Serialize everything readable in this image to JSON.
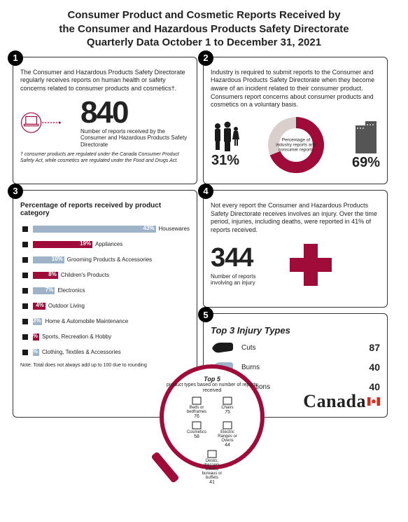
{
  "title_lines": [
    "Consumer Product and Cosmetic Reports Received by",
    "the Consumer and Hazardous Products Safety Directorate",
    "Quarterly Data October 1 to December 31, 2021"
  ],
  "colors": {
    "accent": "#a00c3a",
    "bar_alt": "#9fb3c8",
    "black": "#1a1a1a",
    "grey_icon": "#555555"
  },
  "panel1": {
    "text": "The Consumer and Hazardous Products Safety Directorate regularly receives reports on human health or safety concerns related to consumer products and cosmetics†.",
    "big_number": "840",
    "caption": "Number of reports received by the Consumer and Hazardous Products Safety Directorate",
    "footnote": "† consumer products are regulated under the Canada Consumer Product Safety Act, while cosmetics are regulated under the Food and Drugs Act."
  },
  "panel2": {
    "text": "Industry is required to submit reports to the Consumer and Hazardous Products Safety Directorate when they become aware of an incident related to their consumer product. Consumers report concerns about consumer products and cosmetics on a voluntary basis.",
    "left_pct": "31%",
    "right_pct": "69%",
    "donut_center": "Percentage of industry reports and consumer reports",
    "donut_values": [
      31,
      69
    ]
  },
  "panel3": {
    "title": "Percentage of reports received by product category",
    "type": "bar",
    "max_pct": 50,
    "rows": [
      {
        "icon": "lamp",
        "pct": 43,
        "label": "Housewares",
        "color": "#9fb3c8"
      },
      {
        "icon": "appliance",
        "pct": 19,
        "label": "Appliances",
        "color": "#a00c3a"
      },
      {
        "icon": "grooming",
        "pct": 10,
        "label": "Grooming Products & Accessories",
        "color": "#9fb3c8"
      },
      {
        "icon": "child",
        "pct": 8,
        "label": "Children's Products",
        "color": "#a00c3a"
      },
      {
        "icon": "electronics",
        "pct": 7,
        "label": "Electronics",
        "color": "#9fb3c8"
      },
      {
        "icon": "outdoor",
        "pct": 4,
        "label": "Outdoor Living",
        "color": "#a00c3a"
      },
      {
        "icon": "home-auto",
        "pct": 3,
        "label": "Home & Automobile Maintenance",
        "color": "#9fb3c8"
      },
      {
        "icon": "sports",
        "pct": 2,
        "label": "Sports, Recreation & Hobby",
        "color": "#a00c3a"
      },
      {
        "icon": "clothing",
        "pct": 2,
        "label": "Clothing, Textiles & Accessories",
        "color": "#9fb3c8"
      }
    ],
    "note": "Note: Total does not always add up to 100 due to rounding"
  },
  "panel4": {
    "text": "Not every report the Consumer and Hazardous Products Safety Directorate receives involves an injury. Over the time period, injuries, including deaths, were reported in 41% of reports received.",
    "big_number": "344",
    "caption": "Number of reports involving an injury"
  },
  "panel5": {
    "title": "Top 3 Injury Types",
    "rows": [
      {
        "label": "Cuts",
        "count": "87",
        "hand_color": "#1a1a1a"
      },
      {
        "label": "Burns",
        "count": "40",
        "hand_color": "#9fb3c8"
      },
      {
        "label": "Irritations",
        "count": "40",
        "hand_color": "#1a1a1a"
      }
    ]
  },
  "magnifier": {
    "title": "Top 5",
    "subtitle": "product types based on number of reports received",
    "items": [
      {
        "label": "Beds or bedframes",
        "value": "76"
      },
      {
        "label": "Chairs",
        "value": "75"
      },
      {
        "label": "Cosmetics",
        "value": "58"
      },
      {
        "label": "Electric Ranges or Ovens",
        "value": "44"
      },
      {
        "label": "Desks, dressers, chests, bureaus or buffets",
        "value": "41"
      }
    ]
  },
  "wordmark": "Canada"
}
